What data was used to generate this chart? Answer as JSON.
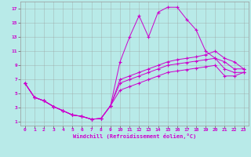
{
  "xlabel": "Windchill (Refroidissement éolien,°C)",
  "bg_color": "#b8eae8",
  "grid_color": "#999999",
  "line_color": "#cc00cc",
  "xlim": [
    -0.5,
    23.5
  ],
  "ylim": [
    0.5,
    18.0
  ],
  "xticks": [
    0,
    1,
    2,
    3,
    4,
    5,
    6,
    7,
    8,
    9,
    10,
    11,
    12,
    13,
    14,
    15,
    16,
    17,
    18,
    19,
    20,
    21,
    22,
    23
  ],
  "yticks": [
    1,
    3,
    5,
    7,
    9,
    11,
    13,
    15,
    17
  ],
  "line1_x": [
    0,
    1,
    2,
    3,
    4,
    5,
    6,
    7,
    8,
    9,
    10,
    11,
    12,
    13,
    14,
    15,
    16,
    17,
    18,
    19,
    20,
    21,
    22,
    23
  ],
  "line1_y": [
    6.5,
    4.5,
    4.0,
    3.2,
    2.6,
    2.0,
    1.8,
    1.4,
    1.5,
    3.3,
    9.5,
    13.0,
    16.0,
    13.0,
    16.5,
    17.2,
    17.2,
    15.5,
    14.0,
    11.0,
    10.0,
    9.5,
    8.5,
    8.5
  ],
  "line2_x": [
    0,
    1,
    2,
    3,
    4,
    5,
    6,
    7,
    8,
    9,
    10,
    11,
    12,
    13,
    14,
    15,
    16,
    17,
    18,
    19,
    20,
    21,
    22,
    23
  ],
  "line2_y": [
    6.5,
    4.5,
    4.0,
    3.2,
    2.6,
    2.0,
    1.8,
    1.4,
    1.5,
    3.3,
    7.0,
    7.5,
    8.0,
    8.5,
    9.0,
    9.5,
    9.8,
    10.0,
    10.2,
    10.5,
    11.0,
    10.0,
    9.5,
    8.5
  ],
  "line3_x": [
    0,
    1,
    2,
    3,
    4,
    5,
    6,
    7,
    8,
    9,
    10,
    11,
    12,
    13,
    14,
    15,
    16,
    17,
    18,
    19,
    20,
    21,
    22,
    23
  ],
  "line3_y": [
    6.5,
    4.5,
    4.0,
    3.2,
    2.6,
    2.0,
    1.8,
    1.4,
    1.5,
    3.3,
    6.5,
    7.0,
    7.5,
    8.0,
    8.5,
    9.0,
    9.2,
    9.4,
    9.6,
    9.8,
    10.0,
    8.5,
    8.0,
    8.0
  ],
  "line4_x": [
    0,
    1,
    2,
    3,
    4,
    5,
    6,
    7,
    8,
    9,
    10,
    11,
    12,
    13,
    14,
    15,
    16,
    17,
    18,
    19,
    20,
    21,
    22,
    23
  ],
  "line4_y": [
    6.5,
    4.5,
    4.0,
    3.2,
    2.6,
    2.0,
    1.8,
    1.4,
    1.5,
    3.3,
    5.5,
    6.0,
    6.5,
    7.0,
    7.5,
    8.0,
    8.2,
    8.4,
    8.6,
    8.8,
    9.0,
    7.5,
    7.5,
    8.0
  ]
}
